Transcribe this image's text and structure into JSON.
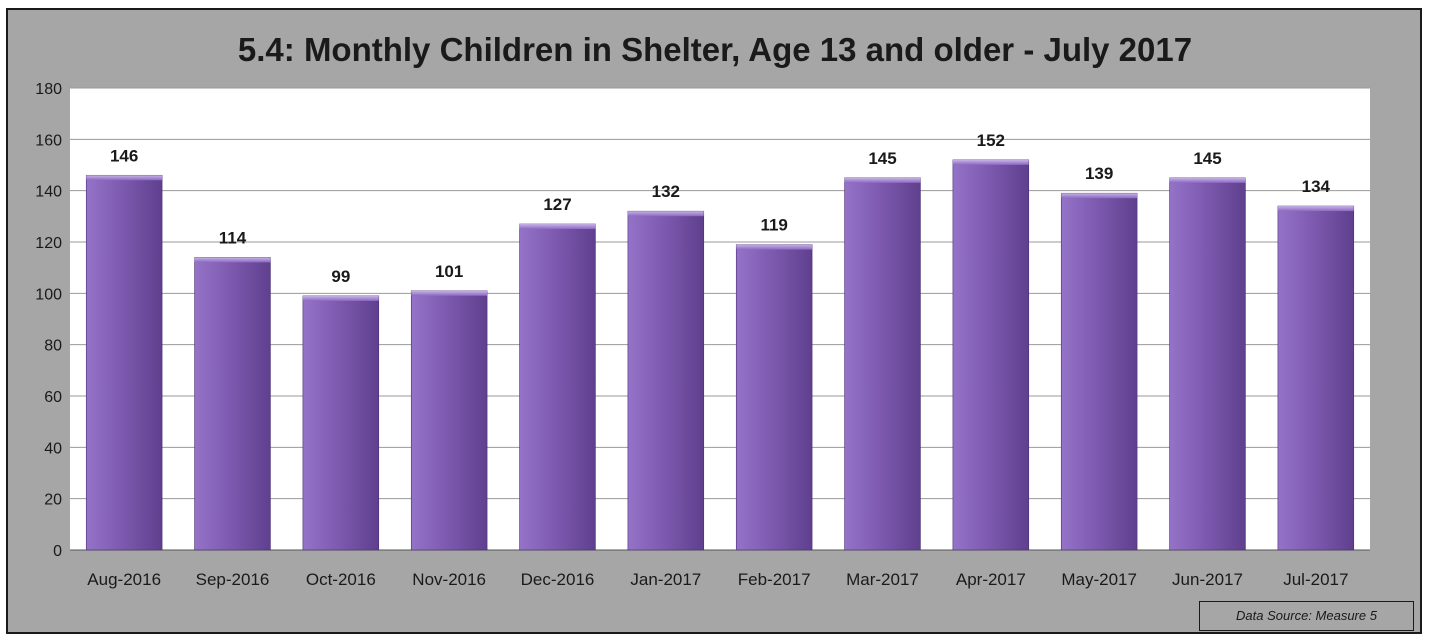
{
  "chart_data": {
    "type": "bar",
    "title": "5.4: Monthly Children in Shelter, Age 13 and older - July 2017",
    "categories": [
      "Aug-2016",
      "Sep-2016",
      "Oct-2016",
      "Nov-2016",
      "Dec-2016",
      "Jan-2017",
      "Feb-2017",
      "Mar-2017",
      "Apr-2017",
      "May-2017",
      "Jun-2017",
      "Jul-2017"
    ],
    "values": [
      146,
      114,
      99,
      101,
      127,
      132,
      119,
      145,
      152,
      139,
      145,
      134
    ],
    "ylim": [
      0,
      180
    ],
    "yticks": [
      0,
      20,
      40,
      60,
      80,
      100,
      120,
      140,
      160,
      180
    ],
    "xlabel": "",
    "ylabel": "",
    "grid": true,
    "data_labels": true,
    "legend": "none",
    "colors": {
      "bar": "#7e5bb0",
      "bar_light": "#9473c8",
      "bar_dark": "#5f3f8e",
      "plot_background": "#ffffff",
      "chart_background": "#a6a6a6",
      "gridline": "#9a9a9a"
    }
  },
  "source_note": "Data Source: Measure 5"
}
